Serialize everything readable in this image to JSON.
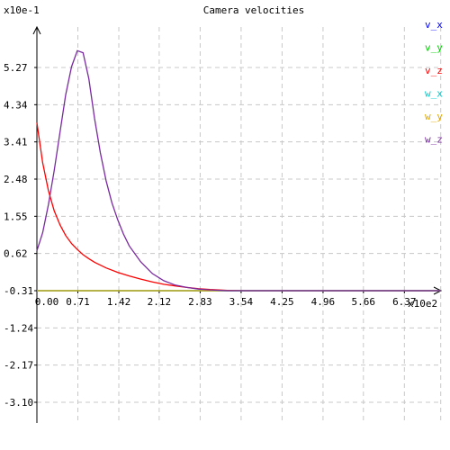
{
  "chart_data": {
    "type": "line",
    "title": "Camera velocities",
    "y_scale_label": "x10e-1",
    "x_scale_label": "x10e2",
    "xlim": [
      0.0,
      7.0
    ],
    "ylim": [
      -3.1,
      6.2
    ],
    "grid": true,
    "legend_position": "right",
    "x_ticks": [
      "0.00",
      "0.71",
      "1.42",
      "2.12",
      "2.83",
      "3.54",
      "4.25",
      "4.96",
      "5.66",
      "6.37"
    ],
    "x_tick_values": [
      0.0,
      0.71,
      1.42,
      2.12,
      2.83,
      3.54,
      4.25,
      4.96,
      5.66,
      6.37
    ],
    "y_ticks": [
      "5.27",
      "4.34",
      "3.41",
      "2.48",
      "1.55",
      "0.62",
      "-0.31",
      "-1.24",
      "-2.17",
      "-3.10"
    ],
    "y_tick_values": [
      5.27,
      4.34,
      3.41,
      2.48,
      1.55,
      0.62,
      -0.31,
      -1.24,
      -2.17,
      -3.1
    ],
    "series": [
      {
        "name": "v_x",
        "color": "#0000ff",
        "x": [
          0,
          7
        ],
        "y": [
          0,
          0
        ]
      },
      {
        "name": "v_y",
        "color": "#00cc00",
        "x": [
          0,
          7
        ],
        "y": [
          0,
          0
        ]
      },
      {
        "name": "v_z",
        "color": "#ff0000",
        "x": [
          0.0,
          0.1,
          0.2,
          0.3,
          0.4,
          0.5,
          0.6,
          0.7,
          0.8,
          0.9,
          1.0,
          1.2,
          1.4,
          1.6,
          1.8,
          2.0,
          2.2,
          2.4,
          2.6,
          2.8,
          3.0,
          3.3,
          3.6,
          4.0,
          5.0,
          6.0,
          7.0
        ],
        "y": [
          4.2,
          3.2,
          2.5,
          2.0,
          1.65,
          1.38,
          1.18,
          1.03,
          0.9,
          0.8,
          0.71,
          0.57,
          0.46,
          0.37,
          0.29,
          0.22,
          0.16,
          0.12,
          0.08,
          0.05,
          0.03,
          0.01,
          0.0,
          0.0,
          0.0,
          0.0,
          0.0
        ]
      },
      {
        "name": "w_x",
        "color": "#00cccc",
        "x": [
          0,
          7
        ],
        "y": [
          0,
          0
        ]
      },
      {
        "name": "w_y",
        "color": "#e0a800",
        "x": [
          0,
          7
        ],
        "y": [
          0,
          0
        ]
      },
      {
        "name": "w_z",
        "color": "#7a2aa0",
        "x": [
          0.0,
          0.1,
          0.2,
          0.3,
          0.4,
          0.5,
          0.6,
          0.7,
          0.8,
          0.9,
          1.0,
          1.1,
          1.2,
          1.3,
          1.4,
          1.5,
          1.6,
          1.8,
          2.0,
          2.2,
          2.4,
          2.6,
          2.8,
          3.0,
          3.3,
          3.6,
          4.0,
          5.0,
          6.0,
          7.0
        ],
        "y": [
          1.0,
          1.45,
          2.15,
          3.0,
          3.95,
          4.9,
          5.6,
          6.0,
          5.95,
          5.3,
          4.3,
          3.45,
          2.75,
          2.2,
          1.78,
          1.42,
          1.12,
          0.72,
          0.43,
          0.25,
          0.14,
          0.08,
          0.04,
          0.02,
          0.0,
          0.0,
          0.0,
          0.0,
          0.0,
          0.0
        ]
      }
    ]
  }
}
